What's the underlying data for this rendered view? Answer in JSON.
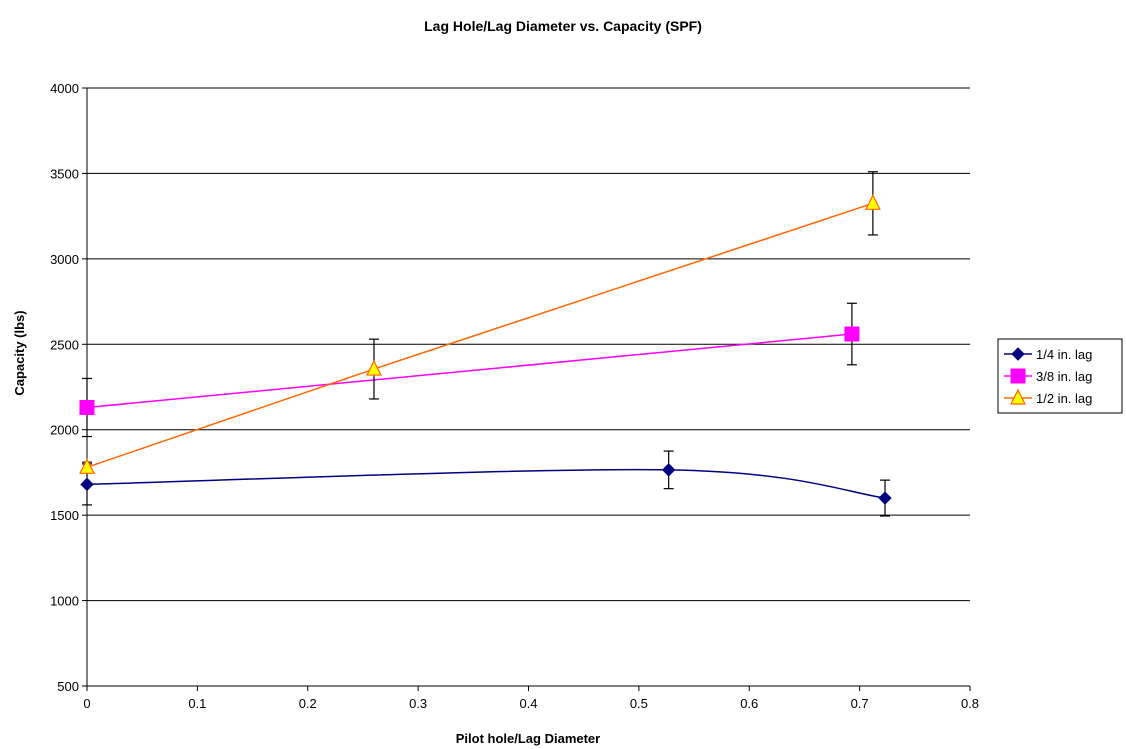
{
  "chart_data": {
    "type": "line",
    "title": "Lag Hole/Lag Diameter vs. Capacity (SPF)",
    "xlabel": "Pilot hole/Lag Diameter",
    "ylabel": "Capacity (lbs)",
    "xlim": [
      0,
      0.8
    ],
    "ylim": [
      500,
      4000
    ],
    "x_ticks": [
      0,
      0.1,
      0.2,
      0.3,
      0.4,
      0.5,
      0.6,
      0.7,
      0.8
    ],
    "x_tick_labels": [
      "0",
      "0.1",
      "0.2",
      "0.3",
      "0.4",
      "0.5",
      "0.6",
      "0.7",
      "0.8"
    ],
    "y_ticks": [
      500,
      1000,
      1500,
      2000,
      2500,
      3000,
      3500,
      4000
    ],
    "y_tick_labels": [
      "500",
      "1000",
      "1500",
      "2000",
      "2500",
      "3000",
      "3500",
      "4000"
    ],
    "grid": "horizontal",
    "legend_position": "right",
    "series": [
      {
        "name": "1/4 in. lag",
        "color": "#000080",
        "marker": "diamond",
        "smooth": true,
        "points": [
          {
            "x": 0.0,
            "y": 1680,
            "err_up": 120,
            "err_down": 120
          },
          {
            "x": 0.527,
            "y": 1765,
            "err_up": 110,
            "err_down": 110
          },
          {
            "x": 0.723,
            "y": 1600,
            "err_up": 105,
            "err_down": 105
          }
        ]
      },
      {
        "name": "3/8 in. lag",
        "color": "#FF00FF",
        "marker": "square",
        "smooth": false,
        "points": [
          {
            "x": 0.0,
            "y": 2130,
            "err_up": 170,
            "err_down": 170
          },
          {
            "x": 0.693,
            "y": 2560,
            "err_up": 180,
            "err_down": 180
          }
        ]
      },
      {
        "name": "1/2 in. lag",
        "color": "#FF6600",
        "marker_fill": "#FFFF00",
        "marker": "triangle",
        "smooth": false,
        "points": [
          {
            "x": 0.0,
            "y": 1780,
            "err_up": 30,
            "err_down": 30
          },
          {
            "x": 0.26,
            "y": 2355,
            "err_up": 175,
            "err_down": 175
          },
          {
            "x": 0.712,
            "y": 3325,
            "err_up": 185,
            "err_down": 185
          }
        ]
      }
    ]
  }
}
